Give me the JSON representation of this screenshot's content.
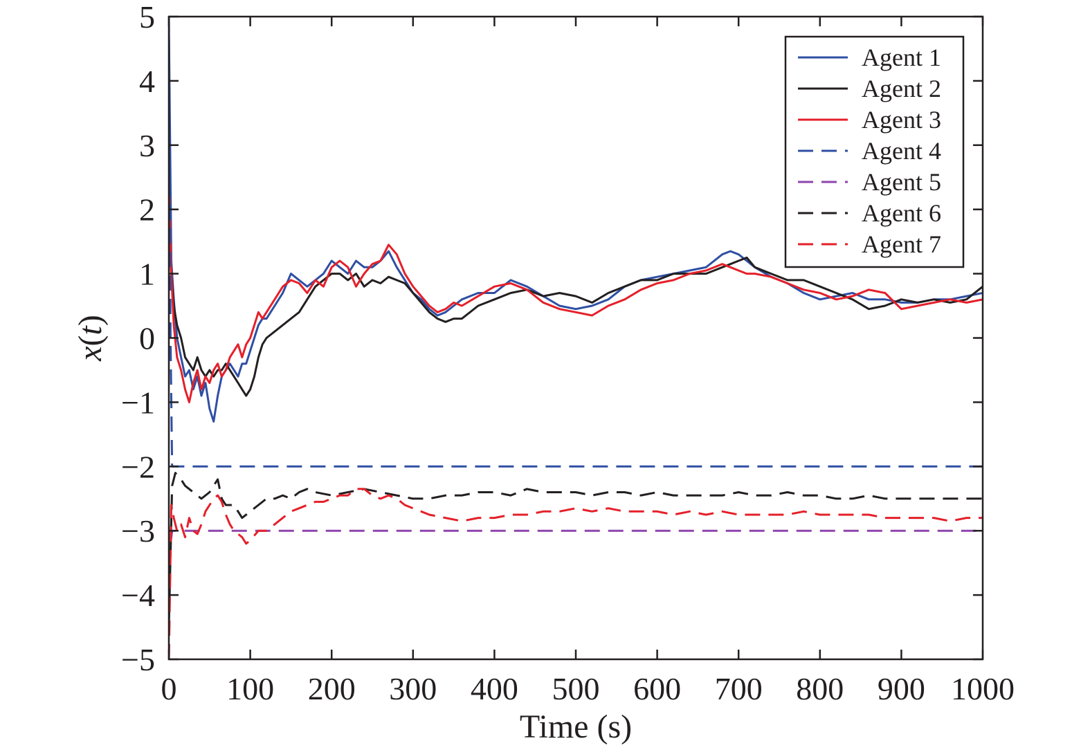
{
  "chart_data": {
    "type": "line",
    "title": "",
    "xlabel": "Time (s)",
    "ylabel": "x(t)",
    "ylabel_parts": {
      "var": "x",
      "open": "(",
      "arg": "t",
      "close": ")"
    },
    "xlim": [
      0,
      1000
    ],
    "ylim": [
      -5,
      5
    ],
    "xticks": [
      0,
      100,
      200,
      300,
      400,
      500,
      600,
      700,
      800,
      900,
      1000
    ],
    "yticks": [
      5,
      4,
      3,
      2,
      1,
      0,
      -1,
      -2,
      -3,
      -4,
      -5
    ],
    "ytick_labels": [
      "5",
      "4",
      "3",
      "2",
      "1",
      "0",
      "−1",
      "−2",
      "−3",
      "−4",
      "−5"
    ],
    "grid": false,
    "legend_position": "top-right",
    "series": [
      {
        "name": "Agent 1",
        "color": "#2e4fa3",
        "dash": "solid",
        "x": [
          0,
          3,
          6,
          10,
          15,
          20,
          25,
          30,
          35,
          40,
          45,
          50,
          55,
          60,
          65,
          70,
          75,
          80,
          85,
          90,
          95,
          100,
          105,
          110,
          115,
          120,
          130,
          140,
          150,
          160,
          170,
          180,
          190,
          200,
          210,
          220,
          230,
          240,
          250,
          260,
          270,
          280,
          290,
          300,
          310,
          320,
          330,
          340,
          350,
          360,
          380,
          400,
          420,
          440,
          460,
          480,
          500,
          520,
          540,
          560,
          580,
          600,
          620,
          640,
          660,
          680,
          690,
          700,
          710,
          720,
          740,
          760,
          780,
          800,
          820,
          840,
          860,
          880,
          900,
          920,
          940,
          960,
          980,
          1000
        ],
        "y": [
          4.9,
          1.2,
          0.6,
          0.0,
          -0.3,
          -0.6,
          -0.5,
          -0.8,
          -0.6,
          -0.9,
          -0.7,
          -1.1,
          -1.3,
          -0.9,
          -0.6,
          -0.5,
          -0.4,
          -0.5,
          -0.6,
          -0.4,
          -0.4,
          -0.2,
          0.0,
          0.2,
          0.3,
          0.3,
          0.5,
          0.7,
          1.0,
          0.9,
          0.8,
          0.9,
          1.0,
          1.2,
          1.1,
          1.0,
          1.2,
          1.1,
          1.1,
          1.2,
          1.35,
          1.1,
          0.9,
          0.7,
          0.6,
          0.45,
          0.35,
          0.4,
          0.5,
          0.6,
          0.7,
          0.7,
          0.9,
          0.8,
          0.65,
          0.5,
          0.45,
          0.5,
          0.6,
          0.8,
          0.9,
          0.95,
          1.0,
          1.05,
          1.1,
          1.3,
          1.35,
          1.3,
          1.2,
          1.1,
          0.95,
          0.85,
          0.7,
          0.6,
          0.65,
          0.7,
          0.6,
          0.6,
          0.55,
          0.55,
          0.6,
          0.6,
          0.65,
          0.7
        ]
      },
      {
        "name": "Agent 2",
        "color": "#231f20",
        "dash": "solid",
        "x": [
          0,
          3,
          6,
          10,
          15,
          20,
          25,
          30,
          35,
          40,
          45,
          50,
          55,
          60,
          65,
          70,
          75,
          80,
          85,
          90,
          95,
          100,
          105,
          110,
          115,
          120,
          130,
          140,
          150,
          160,
          170,
          180,
          190,
          200,
          210,
          220,
          230,
          240,
          250,
          260,
          270,
          280,
          290,
          300,
          310,
          320,
          330,
          340,
          350,
          360,
          380,
          400,
          420,
          440,
          460,
          480,
          500,
          520,
          540,
          560,
          580,
          600,
          620,
          640,
          660,
          680,
          690,
          700,
          710,
          720,
          740,
          760,
          780,
          800,
          820,
          840,
          860,
          880,
          900,
          920,
          940,
          960,
          980,
          1000
        ],
        "y": [
          1.8,
          1.0,
          0.5,
          0.2,
          0.0,
          -0.3,
          -0.4,
          -0.5,
          -0.3,
          -0.5,
          -0.6,
          -0.5,
          -0.6,
          -0.5,
          -0.5,
          -0.4,
          -0.5,
          -0.6,
          -0.7,
          -0.8,
          -0.9,
          -0.8,
          -0.6,
          -0.3,
          -0.1,
          0.0,
          0.1,
          0.2,
          0.3,
          0.4,
          0.6,
          0.8,
          0.9,
          1.0,
          1.0,
          0.9,
          1.0,
          0.8,
          0.9,
          0.85,
          0.95,
          0.9,
          0.85,
          0.7,
          0.55,
          0.4,
          0.3,
          0.25,
          0.3,
          0.3,
          0.5,
          0.6,
          0.7,
          0.75,
          0.65,
          0.7,
          0.65,
          0.55,
          0.7,
          0.8,
          0.9,
          0.9,
          1.0,
          1.0,
          1.0,
          1.1,
          1.15,
          1.2,
          1.25,
          1.1,
          1.0,
          0.9,
          0.9,
          0.8,
          0.7,
          0.6,
          0.45,
          0.5,
          0.6,
          0.55,
          0.6,
          0.55,
          0.6,
          0.8
        ]
      },
      {
        "name": "Agent 3",
        "color": "#e4202a",
        "dash": "solid",
        "x": [
          0,
          3,
          6,
          10,
          15,
          20,
          25,
          30,
          35,
          40,
          45,
          50,
          55,
          60,
          65,
          70,
          75,
          80,
          85,
          90,
          95,
          100,
          105,
          110,
          115,
          120,
          130,
          140,
          150,
          160,
          170,
          180,
          190,
          200,
          210,
          220,
          230,
          240,
          250,
          260,
          270,
          280,
          290,
          300,
          310,
          320,
          330,
          340,
          350,
          360,
          380,
          400,
          420,
          440,
          460,
          480,
          500,
          520,
          540,
          560,
          580,
          600,
          620,
          640,
          660,
          680,
          690,
          700,
          710,
          720,
          740,
          760,
          780,
          800,
          820,
          840,
          860,
          880,
          900,
          920,
          940,
          960,
          980,
          1000
        ],
        "y": [
          2.4,
          1.0,
          0.2,
          -0.3,
          -0.5,
          -0.8,
          -1.0,
          -0.7,
          -0.5,
          -0.8,
          -0.6,
          -0.7,
          -0.5,
          -0.4,
          -0.6,
          -0.5,
          -0.3,
          -0.2,
          -0.1,
          -0.3,
          -0.1,
          0.0,
          0.2,
          0.4,
          0.3,
          0.4,
          0.6,
          0.8,
          0.9,
          0.85,
          0.7,
          0.9,
          0.8,
          1.1,
          1.2,
          1.1,
          0.8,
          1.0,
          1.15,
          1.2,
          1.45,
          1.3,
          1.0,
          0.8,
          0.65,
          0.5,
          0.4,
          0.45,
          0.55,
          0.5,
          0.65,
          0.8,
          0.85,
          0.75,
          0.55,
          0.45,
          0.4,
          0.35,
          0.5,
          0.6,
          0.75,
          0.85,
          0.9,
          1.0,
          1.05,
          1.15,
          1.1,
          1.05,
          1.0,
          1.0,
          0.95,
          0.85,
          0.75,
          0.7,
          0.6,
          0.65,
          0.75,
          0.7,
          0.45,
          0.5,
          0.55,
          0.6,
          0.55,
          0.6
        ]
      },
      {
        "name": "Agent 4",
        "color": "#2e4fa3",
        "dash": "dashed",
        "x": [
          0,
          2,
          4,
          1000
        ],
        "y": [
          5.0,
          0.0,
          -2.0,
          -2.0
        ]
      },
      {
        "name": "Agent 5",
        "color": "#8e44ad",
        "dash": "dashed",
        "x": [
          0,
          2,
          4,
          1000
        ],
        "y": [
          -5.0,
          -3.2,
          -3.0,
          -3.0
        ]
      },
      {
        "name": "Agent 6",
        "color": "#231f20",
        "dash": "dashed",
        "x": [
          0,
          4,
          8,
          15,
          20,
          30,
          40,
          50,
          60,
          65,
          70,
          80,
          90,
          100,
          110,
          120,
          130,
          140,
          150,
          160,
          170,
          180,
          200,
          220,
          240,
          260,
          280,
          300,
          320,
          340,
          360,
          380,
          400,
          420,
          440,
          460,
          480,
          500,
          520,
          540,
          560,
          580,
          600,
          620,
          640,
          660,
          680,
          700,
          720,
          740,
          760,
          780,
          800,
          820,
          840,
          860,
          880,
          900,
          920,
          940,
          960,
          980,
          1000
        ],
        "y": [
          -4.5,
          -2.3,
          -2.1,
          -2.2,
          -2.3,
          -2.4,
          -2.5,
          -2.4,
          -2.2,
          -2.5,
          -2.6,
          -2.6,
          -2.8,
          -2.7,
          -2.6,
          -2.5,
          -2.5,
          -2.45,
          -2.5,
          -2.4,
          -2.35,
          -2.4,
          -2.45,
          -2.4,
          -2.35,
          -2.4,
          -2.45,
          -2.5,
          -2.5,
          -2.45,
          -2.45,
          -2.4,
          -2.4,
          -2.45,
          -2.35,
          -2.4,
          -2.4,
          -2.4,
          -2.45,
          -2.4,
          -2.4,
          -2.45,
          -2.4,
          -2.45,
          -2.45,
          -2.45,
          -2.45,
          -2.4,
          -2.45,
          -2.45,
          -2.4,
          -2.45,
          -2.45,
          -2.5,
          -2.5,
          -2.45,
          -2.5,
          -2.5,
          -2.5,
          -2.5,
          -2.5,
          -2.5,
          -2.5
        ]
      },
      {
        "name": "Agent 7",
        "color": "#e4202a",
        "dash": "dashed",
        "x": [
          0,
          3,
          6,
          10,
          15,
          20,
          25,
          30,
          35,
          40,
          45,
          50,
          55,
          60,
          65,
          70,
          75,
          80,
          85,
          90,
          95,
          100,
          110,
          120,
          130,
          140,
          150,
          160,
          170,
          180,
          190,
          200,
          210,
          220,
          230,
          240,
          250,
          260,
          270,
          280,
          290,
          300,
          310,
          320,
          340,
          360,
          380,
          400,
          420,
          440,
          460,
          480,
          500,
          520,
          540,
          560,
          580,
          600,
          620,
          640,
          660,
          680,
          700,
          720,
          740,
          760,
          780,
          800,
          820,
          840,
          860,
          880,
          900,
          920,
          940,
          960,
          980,
          1000
        ],
        "y": [
          -5.0,
          -2.6,
          -2.8,
          -3.0,
          -2.9,
          -3.1,
          -2.8,
          -3.0,
          -3.05,
          -2.9,
          -2.7,
          -2.6,
          -2.5,
          -2.45,
          -2.55,
          -2.75,
          -2.9,
          -3.0,
          -3.05,
          -3.1,
          -3.2,
          -3.15,
          -3.0,
          -3.0,
          -2.9,
          -2.8,
          -2.7,
          -2.65,
          -2.6,
          -2.55,
          -2.55,
          -2.5,
          -2.45,
          -2.45,
          -2.35,
          -2.35,
          -2.45,
          -2.5,
          -2.45,
          -2.5,
          -2.6,
          -2.65,
          -2.7,
          -2.75,
          -2.8,
          -2.85,
          -2.8,
          -2.8,
          -2.75,
          -2.75,
          -2.7,
          -2.7,
          -2.65,
          -2.7,
          -2.65,
          -2.7,
          -2.7,
          -2.7,
          -2.75,
          -2.7,
          -2.75,
          -2.7,
          -2.75,
          -2.75,
          -2.75,
          -2.75,
          -2.7,
          -2.75,
          -2.75,
          -2.75,
          -2.75,
          -2.8,
          -2.8,
          -2.8,
          -2.8,
          -2.85,
          -2.8,
          -2.8
        ]
      }
    ]
  }
}
